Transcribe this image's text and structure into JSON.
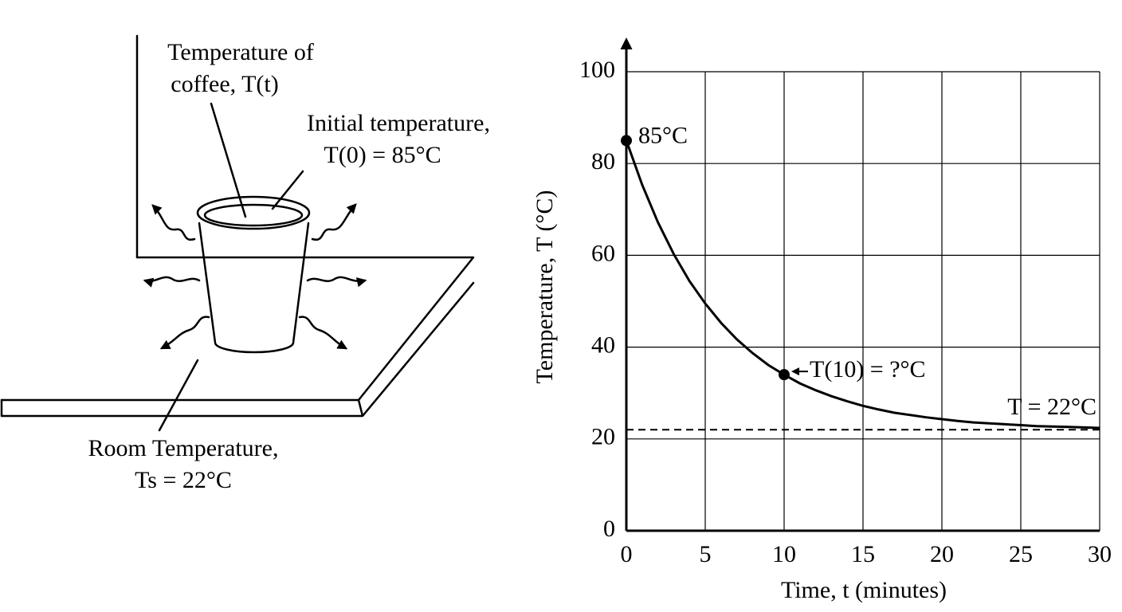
{
  "diagram": {
    "coffee_label": [
      "Temperature of",
      "coffee, T(t)"
    ],
    "initial_label": [
      "Initial temperature,",
      "T(0) = 85°C"
    ],
    "room_label": [
      "Room Temperature,",
      "Ts = 22°C"
    ]
  },
  "chart_data": {
    "type": "line",
    "x_label": "Time, t (minutes)",
    "y_label": "Temperature, T (°C)",
    "x": [
      0,
      1,
      2,
      3,
      4,
      5,
      6,
      7,
      8,
      9,
      10,
      11,
      12,
      13,
      14,
      15,
      16,
      17,
      18,
      19,
      20,
      21,
      22,
      23,
      24,
      25,
      26,
      27,
      28,
      29,
      30
    ],
    "values": [
      85,
      75.4,
      67.2,
      60.3,
      54.4,
      49.5,
      45.3,
      41.7,
      38.7,
      36.1,
      34,
      32.1,
      30.6,
      29.3,
      28.2,
      27.2,
      26.4,
      25.7,
      25.2,
      24.7,
      24.3,
      23.9,
      23.6,
      23.4,
      23.2,
      23,
      22.8,
      22.7,
      22.6,
      22.5,
      22.4
    ],
    "color": "#000000",
    "markers": {
      "x": [
        0,
        10
      ],
      "values": [
        85,
        34
      ]
    },
    "annotations": [
      "85°C",
      "T(10) = ?°C"
    ],
    "asymptote": {
      "value": 22,
      "label": "T = 22°C"
    },
    "xlim": [
      0,
      30
    ],
    "ylim": [
      0,
      100
    ],
    "xticks": [
      0,
      5,
      10,
      15,
      20,
      25,
      30
    ],
    "yticks": [
      0,
      20,
      40,
      60,
      80,
      100
    ],
    "grid": true
  }
}
